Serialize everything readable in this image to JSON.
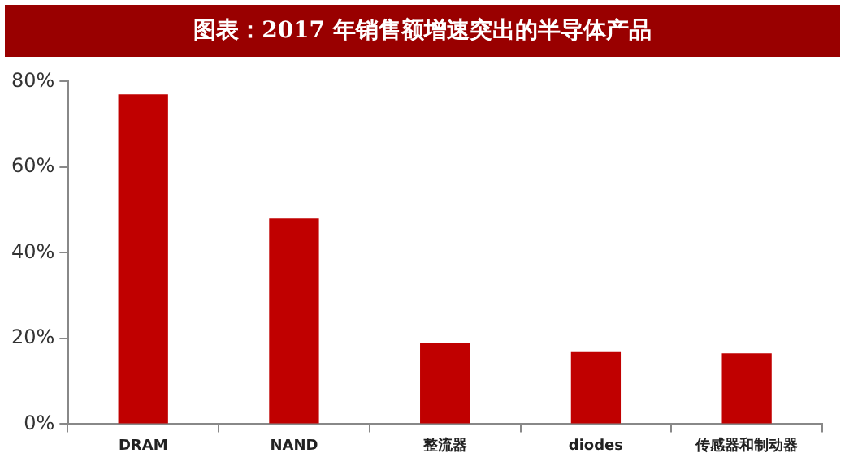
{
  "chart_data": {
    "type": "bar",
    "title": "图表：2017 年销售额增速突出的半导体产品",
    "categories": [
      "DRAM",
      "NAND",
      "整流器",
      "diodes",
      "传感器和制动器"
    ],
    "values": [
      77,
      48,
      19,
      17,
      16.5
    ],
    "color": "#c00000",
    "ylim": [
      0,
      80
    ],
    "yticks": [
      {
        "value": 0,
        "label": "0%"
      },
      {
        "value": 20,
        "label": "20%"
      },
      {
        "value": 40,
        "label": "40%"
      },
      {
        "value": 60,
        "label": "60%"
      },
      {
        "value": 80,
        "label": "80%"
      }
    ],
    "grid": false,
    "legend": false
  }
}
